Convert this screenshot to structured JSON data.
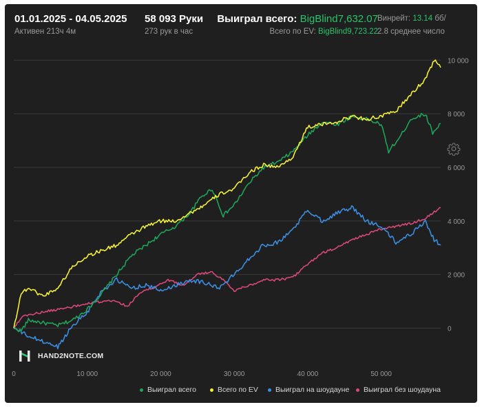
{
  "header": {
    "date_range": "01.01.2025 - 04.05.2025",
    "active_time": "Активен 213ч 4м",
    "hands": "58 093 Руки",
    "hands_rate": "273 рук в час",
    "won_label": "Выиграл всего:",
    "won_value": "BigBlind7,632.07",
    "ev_label": "Всего по EV:",
    "ev_value": "BigBlind9,723.22",
    "winrate_label": "Винрейт:",
    "winrate_value": "13.14",
    "winrate_unit": "бб/",
    "avg_text": "2.8 среднее число"
  },
  "brand": {
    "logo_text": "HAND2NOTE.COM"
  },
  "colors": {
    "background": "#1f1f1f",
    "grid": "#3a3a3a",
    "won_total": "#1fa35a",
    "ev_total": "#f3ef3a",
    "showdown": "#3b8ee2",
    "non_showdown": "#d9487a"
  },
  "icons": {
    "settings": "gear-icon",
    "logo": "hand2note-logo-icon"
  },
  "chart_data": {
    "type": "line",
    "title": "",
    "xlabel": "",
    "ylabel": "",
    "xlim": [
      0,
      58093
    ],
    "ylim": [
      -1400,
      10600
    ],
    "x_ticks": [
      0,
      10000,
      20000,
      30000,
      40000,
      50000
    ],
    "x_tick_labels": [
      "0",
      "10 000",
      "20 000",
      "30 000",
      "40 000",
      "50 000"
    ],
    "y_ticks": [
      0,
      2000,
      4000,
      6000,
      8000,
      10000
    ],
    "y_tick_labels": [
      "0",
      "2 000",
      "4 000",
      "6 000",
      "8 000",
      "10 000"
    ],
    "grid": "horizontal",
    "legend_position": "bottom-right",
    "series": [
      {
        "name": "Выиграл всего",
        "color": "#1fa35a",
        "x": [
          0,
          1000,
          2000,
          4000,
          6000,
          8000,
          10000,
          12000,
          14000,
          16000,
          18000,
          20000,
          22000,
          24000,
          25500,
          27000,
          28500,
          30000,
          32000,
          34000,
          36000,
          38000,
          40000,
          42000,
          44000,
          46000,
          48000,
          50000,
          51000,
          52500,
          54000,
          56000,
          57000,
          58093
        ],
        "values": [
          0,
          -100,
          300,
          200,
          100,
          300,
          700,
          1300,
          2000,
          2700,
          3100,
          3500,
          3800,
          4300,
          4900,
          5200,
          4200,
          4600,
          5400,
          6000,
          6200,
          6600,
          7200,
          7700,
          7600,
          7900,
          7800,
          7600,
          6600,
          7100,
          7800,
          8000,
          7300,
          7632
        ]
      },
      {
        "name": "Всего по EV",
        "color": "#f3ef3a",
        "x": [
          0,
          1000,
          2000,
          4000,
          6000,
          8000,
          10000,
          12000,
          14000,
          16000,
          18000,
          20000,
          22000,
          24000,
          26000,
          28000,
          30000,
          32000,
          34000,
          36000,
          38000,
          40000,
          42000,
          44000,
          46000,
          48000,
          50000,
          52000,
          54000,
          56000,
          57200,
          58093
        ],
        "values": [
          0,
          1300,
          1500,
          1200,
          1500,
          2300,
          2700,
          2900,
          3100,
          3500,
          3800,
          4000,
          4000,
          4300,
          4600,
          5000,
          5200,
          5800,
          6100,
          6000,
          6400,
          7500,
          7600,
          7700,
          7900,
          7800,
          7900,
          8100,
          8700,
          9300,
          10000,
          9723
        ]
      },
      {
        "name": "Выиграл на шоудауне",
        "color": "#3b8ee2",
        "x": [
          0,
          2000,
          4000,
          6000,
          7000,
          8000,
          10000,
          12000,
          14000,
          16000,
          18000,
          20000,
          22000,
          24000,
          26000,
          28000,
          30000,
          32000,
          34000,
          36000,
          38000,
          40000,
          42000,
          44000,
          46000,
          48000,
          50000,
          52000,
          54000,
          56000,
          57200,
          58093
        ],
        "values": [
          0,
          -300,
          -500,
          -700,
          -300,
          100,
          600,
          1400,
          1800,
          1500,
          1600,
          1400,
          1600,
          1800,
          1700,
          1500,
          2000,
          2600,
          3100,
          3200,
          3700,
          4400,
          4000,
          4300,
          4500,
          4000,
          3800,
          3200,
          3500,
          4000,
          3300,
          3100
        ]
      },
      {
        "name": "Выиграл без шоудауна",
        "color": "#d9487a",
        "x": [
          0,
          1000,
          2000,
          4000,
          6000,
          8000,
          10000,
          12000,
          14000,
          15500,
          17000,
          19000,
          21000,
          23000,
          25000,
          27000,
          28500,
          30000,
          32000,
          34000,
          36000,
          38000,
          40000,
          42000,
          44000,
          46000,
          48000,
          50000,
          52000,
          54000,
          56000,
          58093
        ],
        "values": [
          0,
          400,
          500,
          600,
          700,
          800,
          900,
          1000,
          1000,
          800,
          1300,
          1500,
          1800,
          1600,
          2000,
          2100,
          1800,
          1400,
          1600,
          1800,
          1800,
          1900,
          2400,
          2800,
          3000,
          3300,
          3500,
          3700,
          3800,
          3900,
          4100,
          4500
        ]
      }
    ]
  }
}
